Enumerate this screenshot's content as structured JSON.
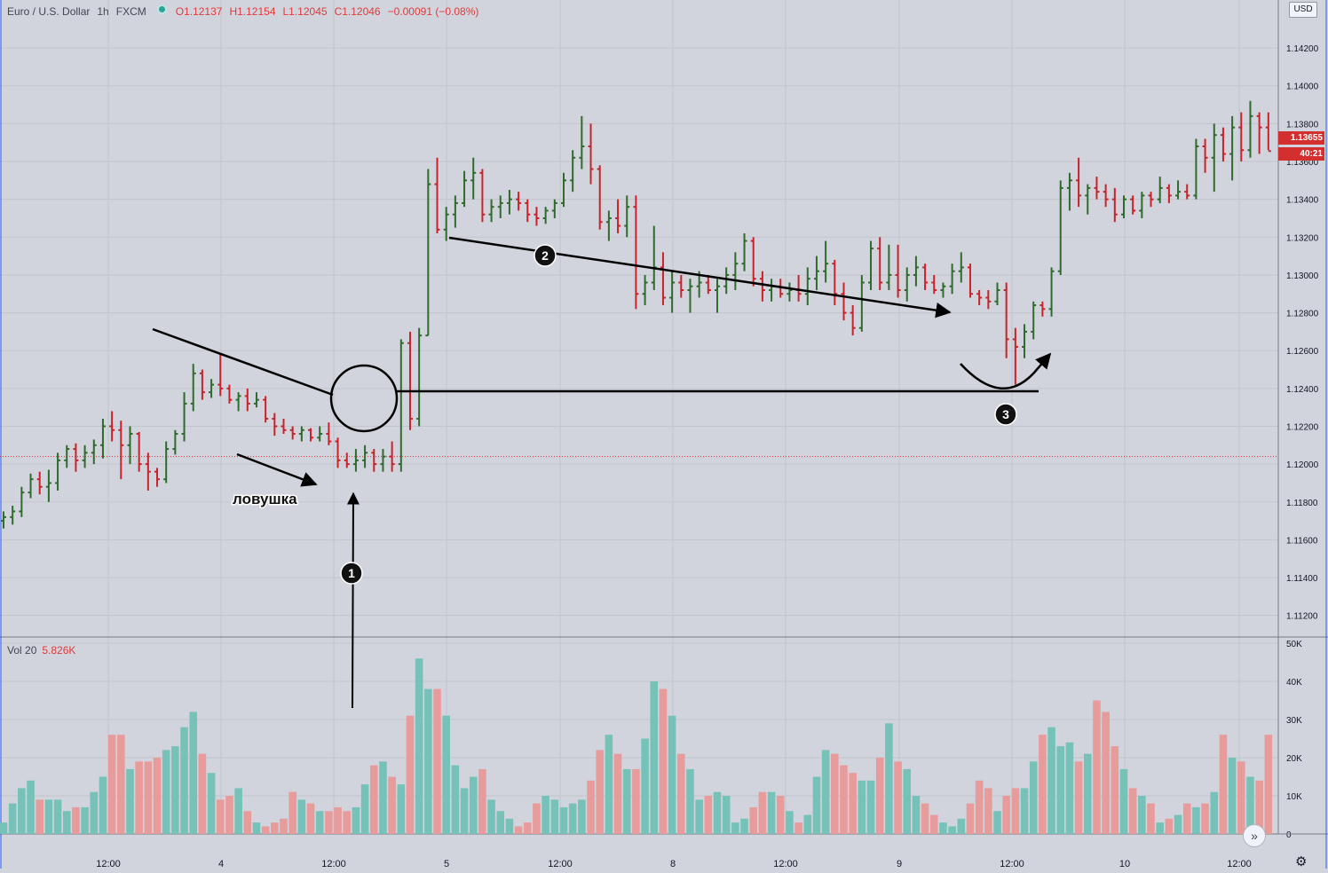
{
  "header": {
    "symbol": "Euro / U.S. Dollar",
    "interval": "1h",
    "exchange": "FXCM",
    "open": "O1.12137",
    "high": "H1.12154",
    "low": "L1.12045",
    "close": "C1.12046",
    "change": "−0.00091 (−0.08%)"
  },
  "currency_button": "USD",
  "last_price_label": "1.13655",
  "countdown_label": "40:21",
  "volume_legend": {
    "name": "Vol 20",
    "value": "5.826K"
  },
  "annotations": {
    "trap_label": "ловушка",
    "marker_1": "1",
    "marker_2": "2",
    "marker_3": "3"
  },
  "colors": {
    "background": "#d1d4dc",
    "up": "#2e6b2c",
    "down": "#c8232b",
    "volume_up": "#76c2b9",
    "volume_down": "#e89b9b",
    "annotation": "#000000"
  },
  "icons": {
    "scroll_right": "double-chevron-right-icon",
    "settings": "gear-icon"
  },
  "chart_data": {
    "type": "ohlc",
    "title": "Euro / U.S. Dollar, 1h, FXCM",
    "ylim": [
      1.111,
      1.1436
    ],
    "y_ticks": [
      "1.14200",
      "1.14000",
      "1.13800",
      "1.13600",
      "1.13400",
      "1.13200",
      "1.13000",
      "1.12800",
      "1.12600",
      "1.12400",
      "1.12200",
      "1.12000",
      "1.11800",
      "1.11600",
      "1.11400",
      "1.11200"
    ],
    "x_ticks": [
      "12:00",
      "4",
      "12:00",
      "5",
      "12:00",
      "8",
      "12:00",
      "9",
      "12:00",
      "10",
      "12:00"
    ],
    "last_price": 1.13655,
    "reference_line": 1.1204,
    "resistance_level": 1.1238,
    "bars": [
      [
        1.117,
        1.1175,
        1.1166,
        1.1172
      ],
      [
        1.1172,
        1.1178,
        1.1168,
        1.1175
      ],
      [
        1.1175,
        1.1188,
        1.1172,
        1.1185
      ],
      [
        1.1185,
        1.1195,
        1.1182,
        1.1192
      ],
      [
        1.1192,
        1.1196,
        1.1184,
        1.1188
      ],
      [
        1.1188,
        1.1197,
        1.118,
        1.119
      ],
      [
        1.119,
        1.1206,
        1.1186,
        1.1202
      ],
      [
        1.1202,
        1.121,
        1.1198,
        1.1208
      ],
      [
        1.1208,
        1.1211,
        1.1196,
        1.1202
      ],
      [
        1.1202,
        1.121,
        1.1198,
        1.1206
      ],
      [
        1.1206,
        1.1213,
        1.12,
        1.121
      ],
      [
        1.121,
        1.1224,
        1.1203,
        1.122
      ],
      [
        1.122,
        1.1228,
        1.1212,
        1.1218
      ],
      [
        1.1218,
        1.1223,
        1.1192,
        1.121
      ],
      [
        1.121,
        1.122,
        1.12,
        1.1216
      ],
      [
        1.1216,
        1.1217,
        1.1196,
        1.12
      ],
      [
        1.12,
        1.1206,
        1.1186,
        1.1196
      ],
      [
        1.1196,
        1.1198,
        1.1188,
        1.1192
      ],
      [
        1.1192,
        1.1212,
        1.119,
        1.1208
      ],
      [
        1.1208,
        1.1218,
        1.1205,
        1.1216
      ],
      [
        1.1216,
        1.1238,
        1.1212,
        1.1232
      ],
      [
        1.1232,
        1.1253,
        1.1228,
        1.1248
      ],
      [
        1.1248,
        1.125,
        1.1234,
        1.1238
      ],
      [
        1.1238,
        1.1245,
        1.1235,
        1.1242
      ],
      [
        1.1242,
        1.1258,
        1.1236,
        1.124
      ],
      [
        1.124,
        1.1242,
        1.1232,
        1.1234
      ],
      [
        1.1234,
        1.1238,
        1.1228,
        1.1236
      ],
      [
        1.1236,
        1.124,
        1.1228,
        1.1232
      ],
      [
        1.1232,
        1.1238,
        1.123,
        1.1234
      ],
      [
        1.1234,
        1.1236,
        1.1222,
        1.1224
      ],
      [
        1.1224,
        1.1227,
        1.1215,
        1.122
      ],
      [
        1.122,
        1.1224,
        1.1216,
        1.1218
      ],
      [
        1.1218,
        1.122,
        1.1213,
        1.1216
      ],
      [
        1.1216,
        1.122,
        1.1212,
        1.1218
      ],
      [
        1.1218,
        1.1219,
        1.1212,
        1.1214
      ],
      [
        1.1214,
        1.122,
        1.1212,
        1.1216
      ],
      [
        1.1216,
        1.1222,
        1.121,
        1.1212
      ],
      [
        1.1212,
        1.1214,
        1.1198,
        1.1202
      ],
      [
        1.1202,
        1.1206,
        1.1198,
        1.12
      ],
      [
        1.12,
        1.1208,
        1.1196,
        1.1202
      ],
      [
        1.1202,
        1.121,
        1.1198,
        1.1206
      ],
      [
        1.1206,
        1.1208,
        1.1196,
        1.12
      ],
      [
        1.12,
        1.1208,
        1.1196,
        1.1204
      ],
      [
        1.1204,
        1.1212,
        1.1196,
        1.12
      ],
      [
        1.12,
        1.1266,
        1.1196,
        1.1264
      ],
      [
        1.1264,
        1.127,
        1.1218,
        1.1224
      ],
      [
        1.1224,
        1.1272,
        1.122,
        1.1268
      ],
      [
        1.1268,
        1.1356,
        1.1268,
        1.1348
      ],
      [
        1.1348,
        1.1362,
        1.1322,
        1.1324
      ],
      [
        1.1324,
        1.1336,
        1.1318,
        1.1332
      ],
      [
        1.1332,
        1.1342,
        1.1325,
        1.1338
      ],
      [
        1.1338,
        1.1355,
        1.1336,
        1.135
      ],
      [
        1.135,
        1.1362,
        1.134,
        1.1354
      ],
      [
        1.1354,
        1.1356,
        1.1328,
        1.1332
      ],
      [
        1.1332,
        1.134,
        1.1328,
        1.1336
      ],
      [
        1.1336,
        1.1342,
        1.133,
        1.1338
      ],
      [
        1.1338,
        1.1345,
        1.1332,
        1.134
      ],
      [
        1.134,
        1.1344,
        1.1334,
        1.1338
      ],
      [
        1.1338,
        1.134,
        1.1328,
        1.1332
      ],
      [
        1.1332,
        1.1336,
        1.1326,
        1.133
      ],
      [
        1.133,
        1.1336,
        1.1327,
        1.1334
      ],
      [
        1.1334,
        1.134,
        1.133,
        1.1338
      ],
      [
        1.1338,
        1.1354,
        1.1336,
        1.135
      ],
      [
        1.135,
        1.1366,
        1.1344,
        1.1362
      ],
      [
        1.1362,
        1.1384,
        1.1356,
        1.1368
      ],
      [
        1.1368,
        1.138,
        1.1348,
        1.1356
      ],
      [
        1.1356,
        1.1358,
        1.1324,
        1.1328
      ],
      [
        1.1328,
        1.1334,
        1.1318,
        1.133
      ],
      [
        1.133,
        1.134,
        1.1322,
        1.1326
      ],
      [
        1.1326,
        1.1342,
        1.132,
        1.1336
      ],
      [
        1.1336,
        1.1342,
        1.1282,
        1.129
      ],
      [
        1.129,
        1.13,
        1.1284,
        1.1296
      ],
      [
        1.1296,
        1.1326,
        1.1292,
        1.1304
      ],
      [
        1.1304,
        1.1312,
        1.1284,
        1.1288
      ],
      [
        1.1288,
        1.1302,
        1.128,
        1.1296
      ],
      [
        1.1296,
        1.13,
        1.1288,
        1.1292
      ],
      [
        1.1292,
        1.1298,
        1.128,
        1.1294
      ],
      [
        1.1294,
        1.1302,
        1.1288,
        1.1296
      ],
      [
        1.1296,
        1.13,
        1.129,
        1.1292
      ],
      [
        1.1292,
        1.1298,
        1.128,
        1.1294
      ],
      [
        1.1294,
        1.1304,
        1.129,
        1.13
      ],
      [
        1.13,
        1.1312,
        1.1292,
        1.1306
      ],
      [
        1.1306,
        1.1322,
        1.1302,
        1.1318
      ],
      [
        1.1318,
        1.132,
        1.1294,
        1.1298
      ],
      [
        1.1298,
        1.1302,
        1.1286,
        1.1292
      ],
      [
        1.1292,
        1.1298,
        1.1286,
        1.1294
      ],
      [
        1.1294,
        1.1298,
        1.1288,
        1.129
      ],
      [
        1.129,
        1.1296,
        1.1286,
        1.1292
      ],
      [
        1.1292,
        1.13,
        1.1286,
        1.129
      ],
      [
        1.129,
        1.1304,
        1.1284,
        1.1298
      ],
      [
        1.1298,
        1.131,
        1.1292,
        1.1302
      ],
      [
        1.1302,
        1.1318,
        1.1296,
        1.1306
      ],
      [
        1.1306,
        1.1308,
        1.1284,
        1.129
      ],
      [
        1.129,
        1.1296,
        1.1276,
        1.128
      ],
      [
        1.128,
        1.1284,
        1.1268,
        1.1272
      ],
      [
        1.1272,
        1.13,
        1.127,
        1.1296
      ],
      [
        1.1296,
        1.1318,
        1.1292,
        1.1314
      ],
      [
        1.1314,
        1.132,
        1.1292,
        1.1296
      ],
      [
        1.1296,
        1.1316,
        1.1292,
        1.13
      ],
      [
        1.13,
        1.1316,
        1.1288,
        1.1292
      ],
      [
        1.1292,
        1.1304,
        1.1286,
        1.13
      ],
      [
        1.13,
        1.131,
        1.1294,
        1.1304
      ],
      [
        1.1304,
        1.1306,
        1.1292,
        1.1296
      ],
      [
        1.1296,
        1.13,
        1.129,
        1.1292
      ],
      [
        1.1292,
        1.1296,
        1.1288,
        1.1294
      ],
      [
        1.1294,
        1.1306,
        1.129,
        1.1302
      ],
      [
        1.1302,
        1.1312,
        1.1296,
        1.1304
      ],
      [
        1.1304,
        1.1306,
        1.1288,
        1.129
      ],
      [
        1.129,
        1.1292,
        1.1284,
        1.1288
      ],
      [
        1.1288,
        1.1292,
        1.1282,
        1.1286
      ],
      [
        1.1286,
        1.1296,
        1.1284,
        1.1292
      ],
      [
        1.1292,
        1.1296,
        1.1256,
        1.1266
      ],
      [
        1.1266,
        1.1272,
        1.1242,
        1.1262
      ],
      [
        1.1262,
        1.1274,
        1.1256,
        1.127
      ],
      [
        1.127,
        1.1286,
        1.1266,
        1.1284
      ],
      [
        1.1284,
        1.1286,
        1.1278,
        1.1282
      ],
      [
        1.1282,
        1.1304,
        1.1278,
        1.1302
      ],
      [
        1.1302,
        1.135,
        1.13,
        1.1346
      ],
      [
        1.1346,
        1.1354,
        1.1334,
        1.135
      ],
      [
        1.135,
        1.1362,
        1.1336,
        1.1342
      ],
      [
        1.1342,
        1.1348,
        1.1332,
        1.1346
      ],
      [
        1.1346,
        1.1352,
        1.134,
        1.1344
      ],
      [
        1.1344,
        1.1348,
        1.1336,
        1.134
      ],
      [
        1.134,
        1.1346,
        1.1328,
        1.1332
      ],
      [
        1.1332,
        1.1342,
        1.133,
        1.134
      ],
      [
        1.134,
        1.1342,
        1.1332,
        1.1334
      ],
      [
        1.1334,
        1.1344,
        1.133,
        1.1342
      ],
      [
        1.1342,
        1.1344,
        1.1336,
        1.134
      ],
      [
        1.134,
        1.1352,
        1.1338,
        1.1346
      ],
      [
        1.1346,
        1.1348,
        1.1338,
        1.1342
      ],
      [
        1.1342,
        1.135,
        1.134,
        1.1344
      ],
      [
        1.1344,
        1.1348,
        1.134,
        1.1342
      ],
      [
        1.1342,
        1.1372,
        1.134,
        1.1368
      ],
      [
        1.1368,
        1.1372,
        1.1354,
        1.1362
      ],
      [
        1.1362,
        1.138,
        1.1344,
        1.1374
      ],
      [
        1.1374,
        1.1378,
        1.136,
        1.1364
      ],
      [
        1.1364,
        1.1384,
        1.135,
        1.1378
      ],
      [
        1.1378,
        1.1386,
        1.136,
        1.1366
      ],
      [
        1.1366,
        1.1392,
        1.1362,
        1.1384
      ],
      [
        1.1384,
        1.1386,
        1.1364,
        1.1378
      ],
      [
        1.1378,
        1.1386,
        1.1366,
        1.13655
      ]
    ],
    "volume": [
      3,
      8,
      12,
      14,
      9,
      9,
      9,
      6,
      7,
      7,
      11,
      15,
      26,
      26,
      17,
      19,
      19,
      20,
      22,
      23,
      28,
      32,
      21,
      16,
      9,
      10,
      12,
      6,
      3,
      2,
      3,
      4,
      11,
      9,
      8,
      6,
      6,
      7,
      6,
      7,
      13,
      18,
      19,
      15,
      13,
      31,
      46,
      38,
      38,
      31,
      18,
      12,
      15,
      17,
      9,
      6,
      4,
      2,
      3,
      8,
      10,
      9,
      7,
      8,
      9,
      14,
      22,
      26,
      21,
      17,
      17,
      25,
      40,
      38,
      31,
      21,
      17,
      9,
      10,
      11,
      10,
      3,
      4,
      7,
      11,
      11,
      10,
      6,
      3,
      5,
      15,
      22,
      21,
      18,
      16,
      14,
      14,
      20,
      29,
      19,
      17,
      10,
      8,
      5,
      3,
      2,
      4,
      8,
      14,
      12,
      6,
      10,
      12,
      12,
      19,
      26,
      28,
      23,
      24,
      19,
      21,
      35,
      32,
      23,
      17,
      12,
      10,
      8,
      3,
      4,
      5,
      8,
      7,
      8,
      11,
      26,
      20,
      19,
      15,
      14,
      26
    ],
    "volume_ylim": [
      0,
      50000
    ],
    "volume_ticks": [
      "50K",
      "40K",
      "30K",
      "20K",
      "10K",
      "0"
    ]
  }
}
